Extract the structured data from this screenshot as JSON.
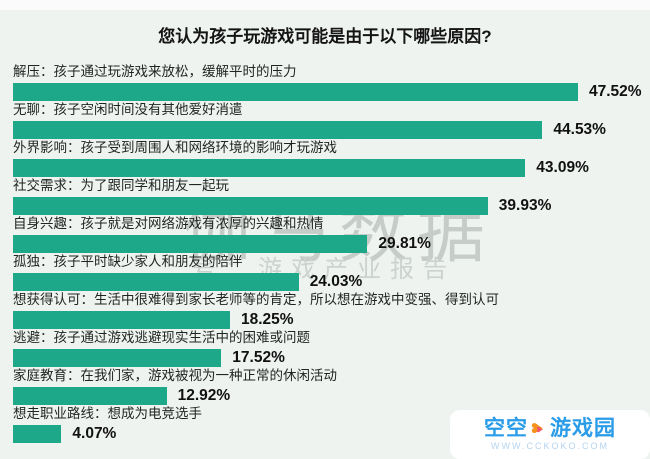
{
  "page": {
    "background_color": "#eff3f0",
    "bar_color": "#1ca889"
  },
  "chart_data": {
    "type": "bar",
    "orientation": "horizontal",
    "title": "您认为孩子玩游戏可能是由于以下哪些原因?",
    "categories": [
      "解压：孩子通过玩游戏来放松，缓解平时的压力",
      "无聊：孩子空闲时间没有其他爱好消遣",
      "外界影响：孩子受到周围人和网络环境的影响才玩游戏",
      "社交需求：为了跟同学和朋友一起玩",
      "自身兴趣：孩子就是对网络游戏有浓厚的兴趣和热情",
      "孤独：孩子平时缺少家人和朋友的陪伴",
      "想获得认可：生活中很难得到家长老师等的肯定，所以想在游戏中变强、得到认可",
      "逃避：孩子通过游戏逃避现实生活中的困难或问题",
      "家庭教育：在我们家，游戏被视为一种正常的休闲活动",
      "想走职业路线：想成为电竞选手"
    ],
    "values": [
      47.52,
      44.53,
      43.09,
      39.93,
      29.81,
      24.03,
      18.25,
      17.52,
      12.92,
      4.07
    ],
    "value_labels": [
      "47.52%",
      "44.53%",
      "43.09%",
      "39.93%",
      "29.81%",
      "24.03%",
      "18.25%",
      "17.52%",
      "12.92%",
      "4.07%"
    ],
    "xlim": [
      0,
      50
    ],
    "grid": false,
    "legend": false,
    "value_label_position": "right-of-bar",
    "bar_color": "#1ca889"
  },
  "watermark": {
    "brand": "伽马数据",
    "subtitle": "号：游戏产业报告"
  },
  "logo": {
    "left": "空空",
    "right": "游戏园",
    "url": "WWW.CCKOKO.COM",
    "text_color": "#2a9ce8",
    "heart_color": "#f6921e",
    "heart_accent_color": "#f0566d"
  }
}
